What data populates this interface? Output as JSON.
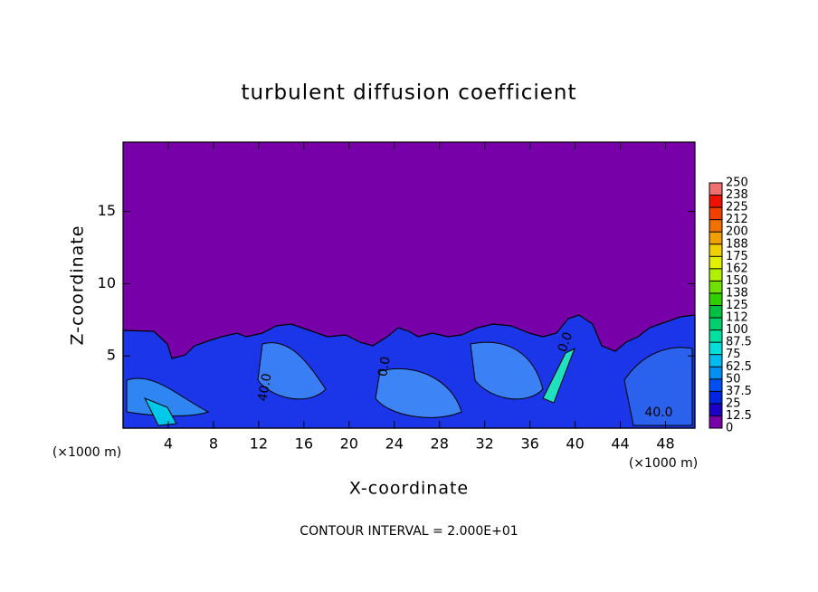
{
  "chart_data": {
    "type": "contour",
    "title": "turbulent diffusion coefficient",
    "xlabel": "X-coordinate",
    "ylabel": "Z-coordinate",
    "xunit": "(×1000 m)",
    "yunit": "(×1000 m)",
    "footer": "CONTOUR INTERVAL = 2.000E+01",
    "xlim": [
      0,
      50.6
    ],
    "ylim": [
      0,
      19.8
    ],
    "xticks": [
      4,
      8,
      12,
      16,
      20,
      24,
      28,
      32,
      36,
      40,
      44,
      48
    ],
    "yticks": [
      5,
      10,
      15
    ],
    "contour_labels": [
      "40.0",
      "40.0",
      "0.0",
      "0.0"
    ],
    "colorbar": {
      "levels": [
        0,
        12.5,
        25,
        37.5,
        50,
        62.5,
        75,
        87.5,
        100,
        {
          "value": 112.5,
          "label": "112"
        },
        125,
        {
          "value": 137.5,
          "label": "138"
        },
        150,
        {
          "value": 162.5,
          "label": "162"
        },
        175,
        {
          "value": 187.5,
          "label": "188"
        },
        200,
        {
          "value": 212.5,
          "label": "212"
        },
        225,
        {
          "value": 237.5,
          "label": "238"
        },
        250
      ],
      "colors": [
        "#7800a8",
        "#1c00c8",
        "#0024e4",
        "#0050f4",
        "#0090f4",
        "#00bcf0",
        "#00e0d8",
        "#00e0a0",
        "#00d070",
        "#00c040",
        "#30d000",
        "#70e000",
        "#b0f000",
        "#e0f000",
        "#f0d000",
        "#f0a000",
        "#f07000",
        "#f04000",
        "#f01000",
        "#f07070"
      ]
    }
  }
}
